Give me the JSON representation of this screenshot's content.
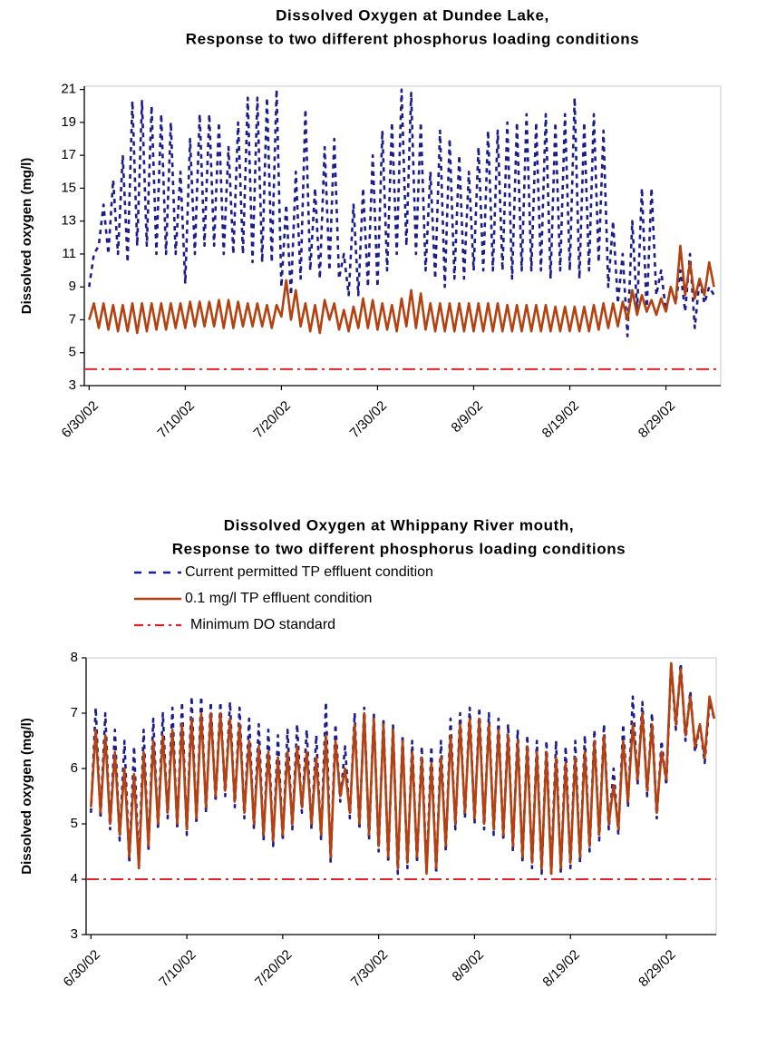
{
  "chart_data": [
    {
      "type": "line",
      "title": "Dissolved Oxygen at Dundee Lake,",
      "subtitle": "Response to two different phosphorus loading conditions",
      "y_label": "Dissolved oxygen (mg/l)",
      "x": [
        0,
        0.5,
        1,
        1.5,
        2,
        2.5,
        3,
        3.5,
        4,
        4.5,
        5,
        5.5,
        6,
        6.5,
        7,
        7.5,
        8,
        8.5,
        9,
        9.5,
        10,
        10.5,
        11,
        11.5,
        12,
        12.5,
        13,
        13.5,
        14,
        14.5,
        15,
        15.5,
        16,
        16.5,
        17,
        17.5,
        18,
        18.5,
        19,
        19.5,
        20,
        20.5,
        21,
        21.5,
        22,
        22.5,
        23,
        23.5,
        24,
        24.5,
        25,
        25.5,
        26,
        26.5,
        27,
        27.5,
        28,
        28.5,
        29,
        29.5,
        30,
        30.5,
        31,
        31.5,
        32,
        32.5,
        33,
        33.5,
        34,
        34.5,
        35,
        35.5,
        36,
        36.5,
        37,
        37.5,
        38,
        38.5,
        39,
        39.5,
        40,
        40.5,
        41,
        41.5,
        42,
        42.5,
        43,
        43.5,
        44,
        44.5,
        45,
        45.5,
        46,
        46.5,
        47,
        47.5,
        48,
        48.5,
        49,
        49.5,
        50,
        50.5,
        51,
        51.5,
        52,
        52.5,
        53,
        53.5,
        54,
        54.5,
        55,
        55.5,
        56,
        56.5,
        57,
        57.5,
        58,
        58.5,
        59,
        59.5,
        60,
        60.5,
        61,
        61.5,
        62,
        62.5,
        63,
        63.5,
        64,
        64.5,
        65
      ],
      "series": [
        {
          "color": "#1c1c8a",
          "dash": "5,5",
          "values": [
            9,
            11,
            11.5,
            14,
            11,
            15.5,
            11,
            17,
            10.5,
            20.3,
            11.5,
            20.3,
            11.5,
            20,
            11,
            19.5,
            11,
            19,
            11,
            16,
            9.2,
            18,
            11,
            19.5,
            11.5,
            19.5,
            11.5,
            19,
            11,
            17.5,
            11,
            19,
            11,
            20.5,
            10.5,
            20.5,
            10.5,
            20.5,
            10.5,
            21,
            9,
            14,
            8.5,
            16,
            9.5,
            19.8,
            10,
            15,
            9.5,
            17.5,
            10,
            18,
            9.5,
            11,
            8.5,
            14,
            8.5,
            15,
            9,
            17,
            9,
            18.5,
            10,
            19,
            11,
            21,
            11.5,
            20.8,
            11,
            19,
            10,
            16,
            9.5,
            18.5,
            9,
            18,
            9.5,
            17,
            9.5,
            16,
            10,
            17.5,
            10,
            18.5,
            10,
            18.5,
            10,
            19,
            9.5,
            19,
            10,
            19.5,
            10,
            19,
            10,
            19.5,
            9.5,
            19,
            10,
            19.5,
            10,
            20.5,
            9.5,
            19,
            10,
            19.5,
            10.5,
            18.5,
            9,
            13,
            8,
            11,
            6,
            13,
            7.5,
            15,
            7.5,
            15,
            8.5,
            10,
            7.5,
            9,
            8,
            10,
            7.5,
            11,
            6.5,
            9.5,
            8,
            9,
            8.5
          ]
        },
        {
          "color": "#b4410f",
          "dash": "none",
          "values": [
            7,
            8.0,
            6.5,
            8.0,
            6.4,
            7.9,
            6.3,
            7.9,
            6.3,
            8.0,
            6.2,
            8.0,
            6.3,
            8.0,
            6.4,
            8.0,
            6.4,
            8.0,
            6.5,
            8.0,
            6.5,
            8.1,
            6.6,
            8.1,
            6.6,
            8.1,
            6.6,
            8.2,
            6.5,
            8.2,
            6.5,
            8.1,
            6.6,
            8.0,
            6.6,
            8.0,
            6.6,
            7.9,
            6.5,
            7.9,
            7.2,
            9.4,
            7.0,
            8.8,
            6.6,
            8.0,
            6.3,
            7.9,
            6.2,
            8.2,
            7.0,
            8.0,
            6.4,
            7.6,
            6.3,
            7.8,
            6.5,
            8.3,
            6.5,
            8.2,
            6.4,
            8.0,
            6.4,
            7.9,
            6.3,
            8.3,
            6.6,
            8.8,
            6.5,
            8.6,
            6.4,
            8.0,
            6.3,
            8.0,
            6.3,
            8.0,
            6.3,
            8.0,
            6.3,
            8.0,
            6.3,
            8.0,
            6.3,
            8.0,
            6.3,
            8.0,
            6.3,
            7.9,
            6.3,
            7.9,
            6.3,
            7.9,
            6.3,
            7.9,
            6.3,
            7.9,
            6.3,
            7.8,
            6.3,
            7.8,
            6.3,
            7.8,
            6.3,
            7.8,
            6.3,
            7.9,
            6.4,
            8.0,
            6.5,
            8.0,
            6.6,
            8.1,
            7.0,
            8.8,
            7.3,
            8.5,
            7.5,
            8.2,
            7.3,
            8.3,
            7.5,
            9.0,
            8.0,
            11.5,
            8.5,
            10.5,
            8.3,
            9.5,
            8.5,
            10.5,
            9.0
          ]
        }
      ],
      "reference_line": {
        "value": 4,
        "color": "#e3222b"
      },
      "xlim": [
        -0.5,
        65.7
      ],
      "xticks": [
        {
          "value": 0,
          "label": "6/30/02"
        },
        {
          "value": 10,
          "label": "7/10/02"
        },
        {
          "value": 20,
          "label": "7/20/02"
        },
        {
          "value": 30,
          "label": "7/30/02"
        },
        {
          "value": 40,
          "label": "8/9/02"
        },
        {
          "value": 50,
          "label": "8/19/02"
        },
        {
          "value": 60,
          "label": "8/29/02"
        }
      ],
      "ylim": [
        3,
        21.2
      ],
      "yticks": [
        3,
        5,
        7,
        9,
        11,
        13,
        15,
        17,
        19,
        21
      ]
    },
    {
      "type": "line",
      "title": "Dissolved Oxygen at Whippany River mouth,",
      "subtitle": "Response to two different phosphorus loading conditions",
      "y_label": "Dissolved oxygen (mg/l)",
      "legend": "top",
      "x": [
        0,
        0.5,
        1,
        1.5,
        2,
        2.5,
        3,
        3.5,
        4,
        4.5,
        5,
        5.5,
        6,
        6.5,
        7,
        7.5,
        8,
        8.5,
        9,
        9.5,
        10,
        10.5,
        11,
        11.5,
        12,
        12.5,
        13,
        13.5,
        14,
        14.5,
        15,
        15.5,
        16,
        16.5,
        17,
        17.5,
        18,
        18.5,
        19,
        19.5,
        20,
        20.5,
        21,
        21.5,
        22,
        22.5,
        23,
        23.5,
        24,
        24.5,
        25,
        25.5,
        26,
        26.5,
        27,
        27.5,
        28,
        28.5,
        29,
        29.5,
        30,
        30.5,
        31,
        31.5,
        32,
        32.5,
        33,
        33.5,
        34,
        34.5,
        35,
        35.5,
        36,
        36.5,
        37,
        37.5,
        38,
        38.5,
        39,
        39.5,
        40,
        40.5,
        41,
        41.5,
        42,
        42.5,
        43,
        43.5,
        44,
        44.5,
        45,
        45.5,
        46,
        46.5,
        47,
        47.5,
        48,
        48.5,
        49,
        49.5,
        50,
        50.5,
        51,
        51.5,
        52,
        52.5,
        53,
        53.5,
        54,
        54.5,
        55,
        55.5,
        56,
        56.5,
        57,
        57.5,
        58,
        58.5,
        59,
        59.5,
        60,
        60.5,
        61,
        61.5,
        62,
        62.5,
        63,
        63.5,
        64,
        64.5,
        65
      ],
      "series": [
        {
          "name": "Current permitted TP effluent condition",
          "color": "#1c1c8a",
          "dash": "5,5",
          "values": [
            5.2,
            7.1,
            5.1,
            7.0,
            4.9,
            6.7,
            4.7,
            6.5,
            4.3,
            6.4,
            4.2,
            6.7,
            4.5,
            6.9,
            4.9,
            7.0,
            5.1,
            7.1,
            4.9,
            7.2,
            4.8,
            7.3,
            5.0,
            7.3,
            5.2,
            7.2,
            5.4,
            7.2,
            5.5,
            7.2,
            5.3,
            7.1,
            5.1,
            6.9,
            4.9,
            6.8,
            4.7,
            6.7,
            4.6,
            6.6,
            4.7,
            6.7,
            4.9,
            6.8,
            5.2,
            6.7,
            4.9,
            6.6,
            4.7,
            7.2,
            4.3,
            6.8,
            5.4,
            6.4,
            5.1,
            7.0,
            4.9,
            7.1,
            4.7,
            7.0,
            4.5,
            6.9,
            4.3,
            6.8,
            4.1,
            6.6,
            4.2,
            6.5,
            4.3,
            6.4,
            4.1,
            6.4,
            4.1,
            6.5,
            4.5,
            6.9,
            4.9,
            7.0,
            5.1,
            7.1,
            5.0,
            7.1,
            4.9,
            7.0,
            4.8,
            6.9,
            4.7,
            6.8,
            4.5,
            6.7,
            4.3,
            6.6,
            4.2,
            6.5,
            4.1,
            6.5,
            4.1,
            6.5,
            4.1,
            6.4,
            4.2,
            6.5,
            4.3,
            6.6,
            4.5,
            6.7,
            4.7,
            6.8,
            4.9,
            6.0,
            4.8,
            6.8,
            5.3,
            7.3,
            5.7,
            7.2,
            5.5,
            7.0,
            5.1,
            6.5,
            5.7,
            7.9,
            6.7,
            7.9,
            6.5,
            7.4,
            6.3,
            6.8,
            6.1,
            7.2,
            6.9
          ]
        },
        {
          "name": "0.1 mg/l TP effluent condition",
          "color": "#b4410f",
          "dash": "none",
          "values": [
            5.3,
            6.7,
            5.2,
            6.6,
            5.0,
            6.3,
            4.8,
            6.0,
            4.4,
            5.9,
            4.2,
            6.3,
            4.6,
            6.5,
            5.0,
            6.6,
            5.2,
            6.7,
            5.0,
            6.8,
            4.9,
            6.9,
            5.1,
            7.0,
            5.3,
            7.0,
            5.5,
            7.0,
            5.6,
            6.9,
            5.4,
            6.8,
            5.2,
            6.5,
            5.0,
            6.4,
            4.8,
            6.3,
            4.7,
            6.2,
            4.8,
            6.3,
            5.0,
            6.4,
            5.3,
            6.3,
            5.0,
            6.2,
            4.8,
            6.6,
            4.4,
            6.5,
            5.5,
            6.0,
            5.2,
            6.8,
            5.0,
            7.0,
            4.8,
            6.9,
            4.6,
            6.8,
            4.4,
            6.7,
            4.2,
            6.5,
            4.3,
            6.3,
            4.4,
            6.2,
            4.1,
            6.1,
            4.2,
            6.2,
            4.6,
            6.6,
            5.0,
            6.8,
            5.2,
            6.9,
            5.1,
            6.9,
            5.0,
            6.8,
            4.9,
            6.7,
            4.8,
            6.6,
            4.6,
            6.5,
            4.4,
            6.4,
            4.3,
            6.3,
            4.2,
            6.3,
            4.1,
            6.2,
            4.2,
            6.1,
            4.3,
            6.2,
            4.4,
            6.3,
            4.6,
            6.5,
            4.8,
            6.6,
            5.0,
            5.7,
            4.9,
            6.5,
            5.4,
            6.8,
            5.8,
            7.0,
            5.6,
            6.8,
            5.2,
            6.3,
            5.8,
            7.9,
            6.8,
            7.8,
            6.6,
            7.3,
            6.4,
            6.8,
            6.2,
            7.3,
            6.9
          ]
        }
      ],
      "reference_line": {
        "name": "Minimum DO standard",
        "value": 4,
        "color": "#e3222b"
      },
      "xlim": [
        -0.5,
        65.2
      ],
      "xticks": [
        {
          "value": 0,
          "label": "6/30/02"
        },
        {
          "value": 10,
          "label": "7/10/02"
        },
        {
          "value": 20,
          "label": "7/20/02"
        },
        {
          "value": 30,
          "label": "7/30/02"
        },
        {
          "value": 40,
          "label": "8/9/02"
        },
        {
          "value": 50,
          "label": "8/19/02"
        },
        {
          "value": 60,
          "label": "8/29/02"
        }
      ],
      "ylim": [
        3,
        8
      ],
      "yticks": [
        3,
        4,
        5,
        6,
        7,
        8
      ]
    }
  ]
}
